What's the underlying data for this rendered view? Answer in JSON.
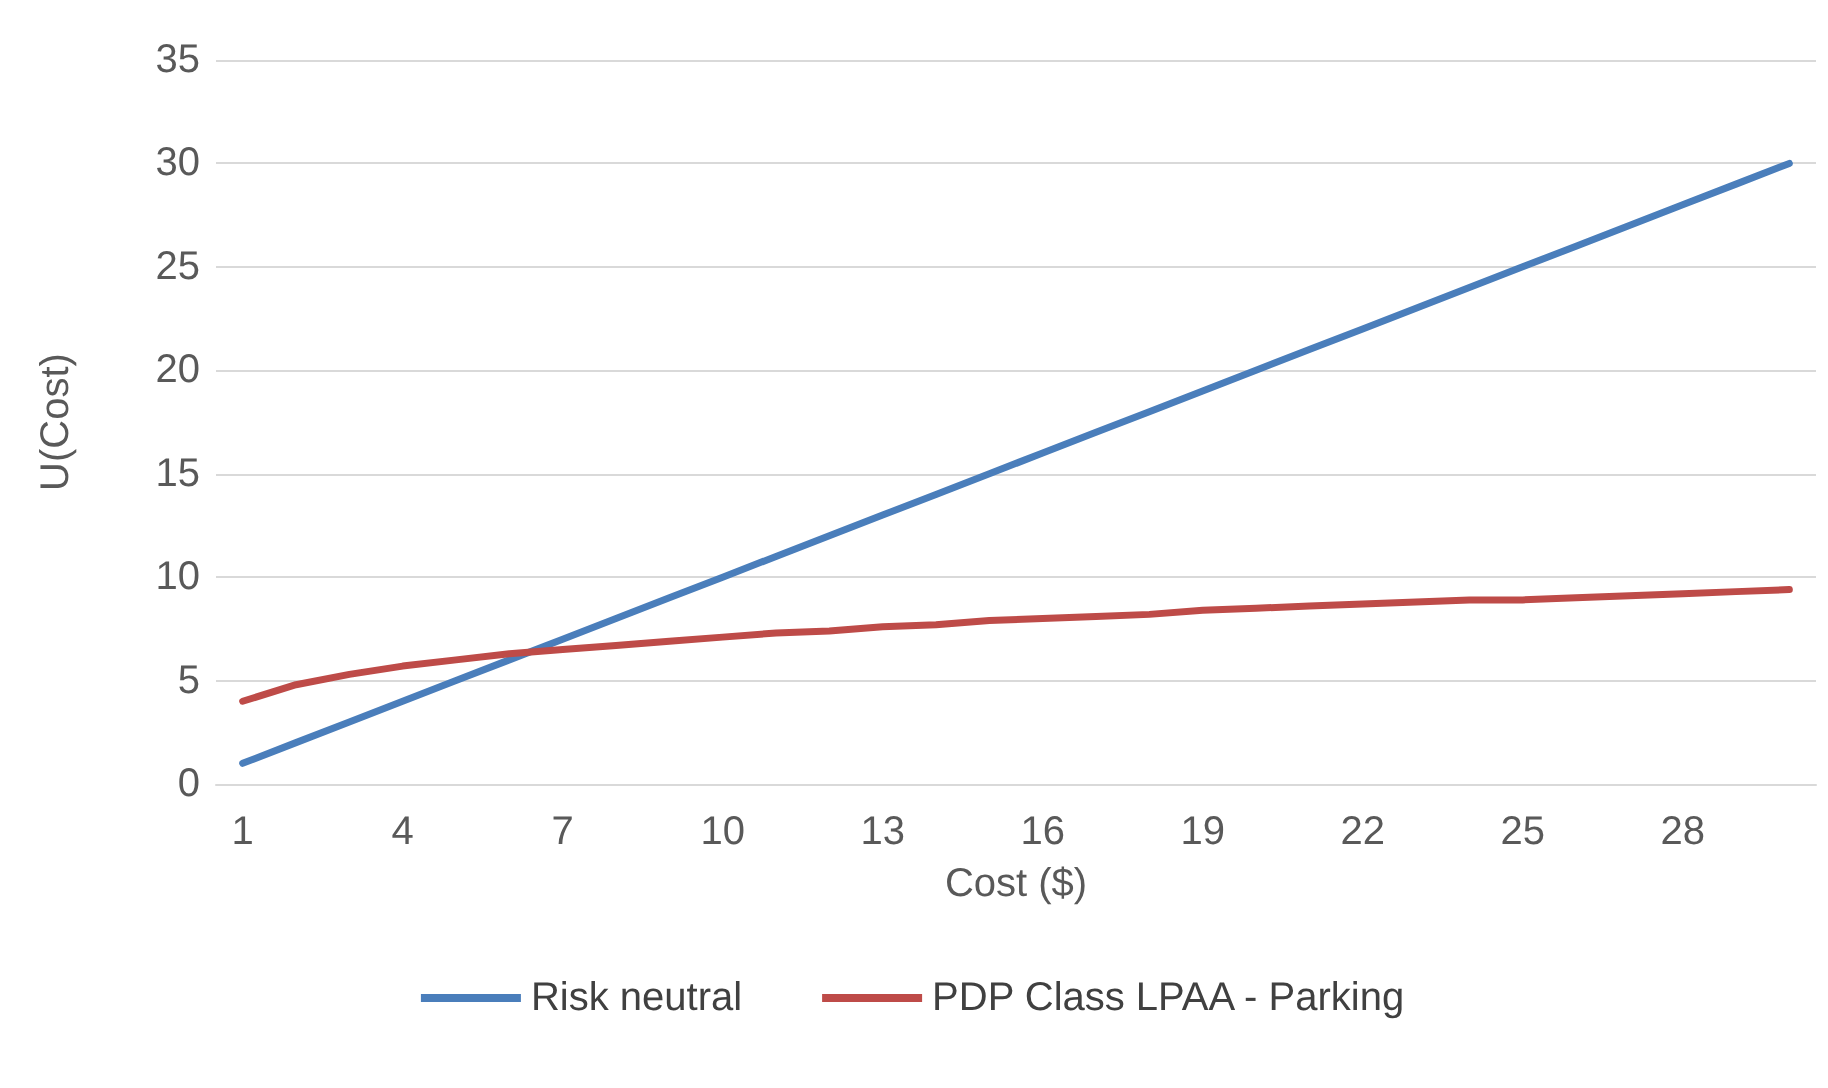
{
  "chart_data": {
    "type": "line",
    "xlabel": "Cost ($)",
    "ylabel": "U(Cost)",
    "categories": [
      "1",
      null,
      null,
      "4",
      null,
      null,
      "7",
      null,
      null,
      "10",
      null,
      null,
      "13",
      null,
      null,
      "16",
      null,
      null,
      "19",
      null,
      null,
      "22",
      null,
      null,
      "25",
      null,
      null,
      "28",
      null,
      null
    ],
    "series": [
      {
        "name": "Risk neutral",
        "color": "#4a7ebb",
        "values": [
          1,
          2,
          3,
          4,
          5,
          6,
          7,
          8,
          9,
          10,
          11,
          12,
          13,
          14,
          15,
          16,
          17,
          18,
          19,
          20,
          21,
          22,
          23,
          24,
          25,
          26,
          27,
          28,
          29,
          30
        ]
      },
      {
        "name": "PDP Class LPAA - Parking",
        "color": "#be4b48",
        "values": [
          4.0,
          4.8,
          5.3,
          5.7,
          6.0,
          6.3,
          6.5,
          6.7,
          6.9,
          7.1,
          7.3,
          7.4,
          7.6,
          7.7,
          7.9,
          8.0,
          8.1,
          8.2,
          8.4,
          8.5,
          8.6,
          8.7,
          8.8,
          8.9,
          8.9,
          9.0,
          9.1,
          9.2,
          9.3,
          9.4
        ]
      }
    ],
    "ylim": [
      0,
      35
    ],
    "yticks": [
      0,
      5,
      10,
      15,
      20,
      25,
      30,
      35
    ],
    "grid": "y",
    "legend": "bottom",
    "marker": "none",
    "line_style": "solid"
  }
}
